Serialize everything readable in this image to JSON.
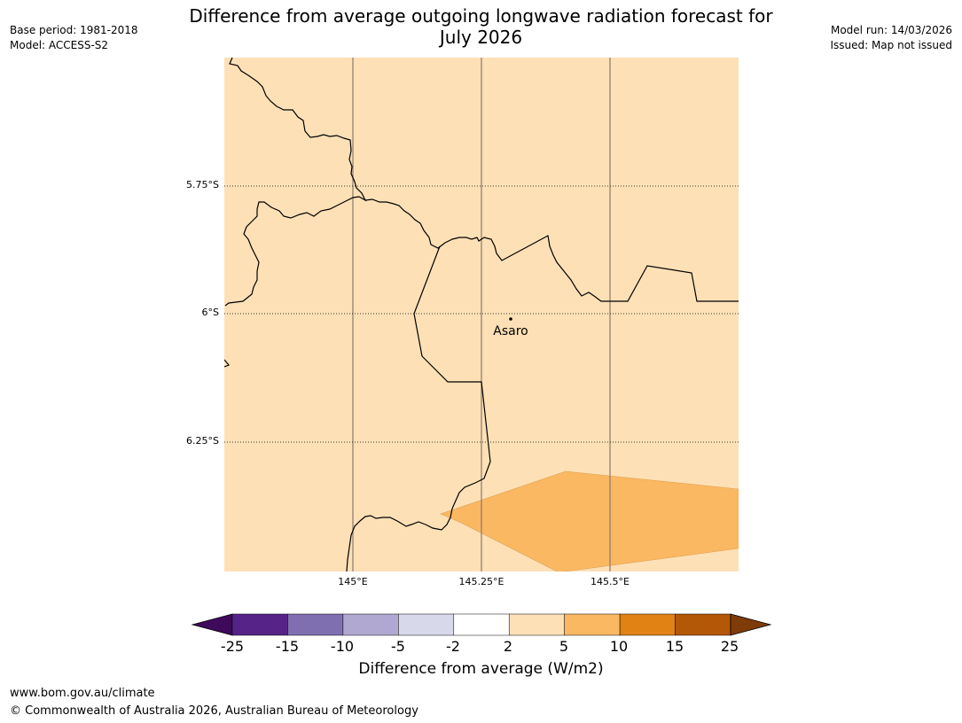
{
  "title_line1": "Difference from average outgoing longwave radiation forecast for",
  "title_line2": "July 2026",
  "base_period": "Base period: 1981-2018",
  "model": "Model: ACCESS-S2",
  "model_run": "Model run: 14/03/2026",
  "issued": "Issued: Map not issued",
  "lat_labels": [
    "5.75°S",
    "6°S",
    "6.25°S"
  ],
  "lon_labels": [
    "145°E",
    "145.25°E",
    "145.5°E"
  ],
  "place_label": "Asaro",
  "colorbar": {
    "title": "Difference from average (W/m2)",
    "ticks": [
      "-25",
      "-15",
      "-10",
      "-5",
      "-2",
      "2",
      "5",
      "10",
      "15",
      "25"
    ],
    "colors": [
      "#3f0a5c",
      "#562388",
      "#806fb0",
      "#b1a8d1",
      "#d8d8eb",
      "#ffffff",
      "#fde0b6",
      "#fab862",
      "#e08214",
      "#b35806",
      "#7f3b08"
    ]
  },
  "map_colors": {
    "background_fill": "#fde0b6",
    "anomaly_fill": "#fab862"
  },
  "footer_url": "www.bom.gov.au/climate",
  "footer_copyright": "© Commonwealth of Australia 2026, Australian Bureau of Meteorology"
}
